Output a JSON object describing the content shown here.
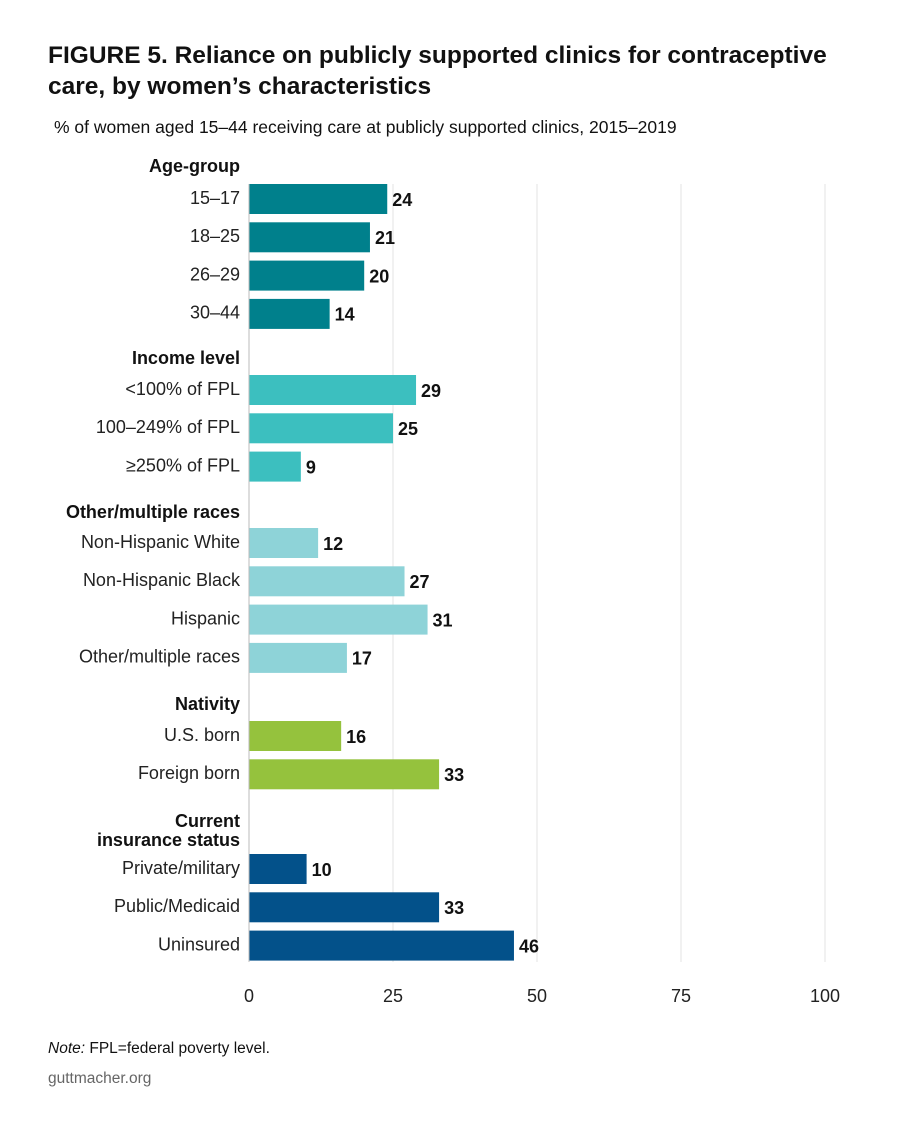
{
  "title": "FIGURE 5. Reliance on publicly supported clinics for contraceptive care, by women’s characteristics",
  "subtitle": "% of women aged 15–44 receiving care at publicly supported clinics, 2015–2019",
  "note_label": "Note:",
  "note_text": "FPL=federal poverty level.",
  "source": "guttmacher.org",
  "chart_data": {
    "type": "bar",
    "orientation": "horizontal",
    "title": "FIGURE 5. Reliance on publicly supported clinics for contraceptive care, by women’s characteristics",
    "subtitle": "% of women aged 15–44 receiving care at publicly supported clinics, 2015–2019",
    "xlim": [
      0,
      100
    ],
    "x_ticks": [
      0,
      25,
      50,
      75,
      100
    ],
    "grid": true,
    "data_labels": true,
    "groups": [
      {
        "name": "Age-group",
        "color": "#00808c",
        "categories": [
          "15–17",
          "18–25",
          "26–29",
          "30–44"
        ],
        "values": [
          24,
          21,
          20,
          14
        ]
      },
      {
        "name": "Income level",
        "color": "#3cbfbf",
        "categories": [
          "<100% of FPL",
          "100–249% of FPL",
          "≥250% of FPL"
        ],
        "values": [
          29,
          25,
          9
        ]
      },
      {
        "name": "Other/multiple races",
        "color": "#8ed3d8",
        "categories": [
          "Non-Hispanic White",
          "Non-Hispanic Black",
          "Hispanic",
          "Other/multiple races"
        ],
        "values": [
          12,
          27,
          31,
          17
        ]
      },
      {
        "name": "Nativity",
        "color": "#95c23d",
        "categories": [
          "U.S. born",
          "Foreign born"
        ],
        "values": [
          16,
          33
        ]
      },
      {
        "name": "Current insurance status",
        "name_lines": [
          "Current",
          "insurance status"
        ],
        "color": "#03518a",
        "categories": [
          "Private/military",
          "Public/Medicaid",
          "Uninsured"
        ],
        "values": [
          10,
          33,
          46
        ]
      }
    ]
  }
}
